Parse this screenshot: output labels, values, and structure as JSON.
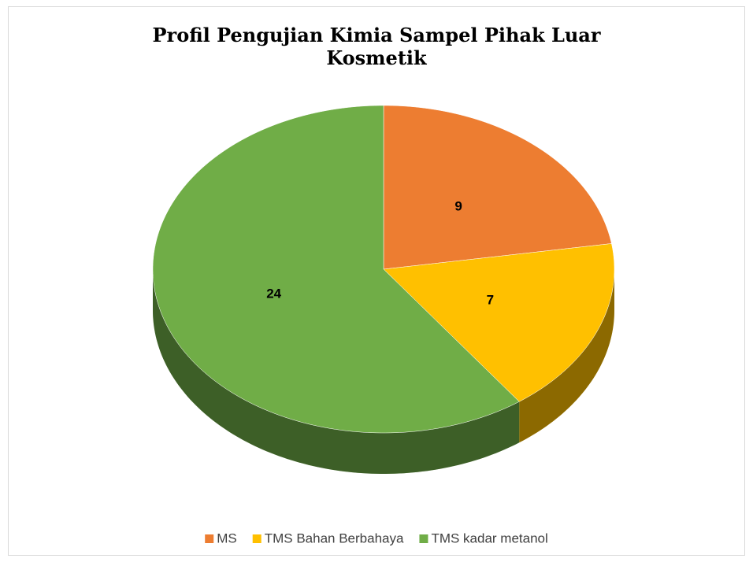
{
  "chart_data": {
    "type": "pie",
    "title": "Profil Pengujian Kimia Sampel Pihak Luar Kosmetik",
    "categories": [
      "MS",
      "TMS Bahan Berbahaya",
      "TMS kadar metanol"
    ],
    "values": [
      9,
      7,
      24
    ],
    "colors": [
      "#ed7d31",
      "#ffc000",
      "#70ad47"
    ],
    "legend": "bottom"
  }
}
